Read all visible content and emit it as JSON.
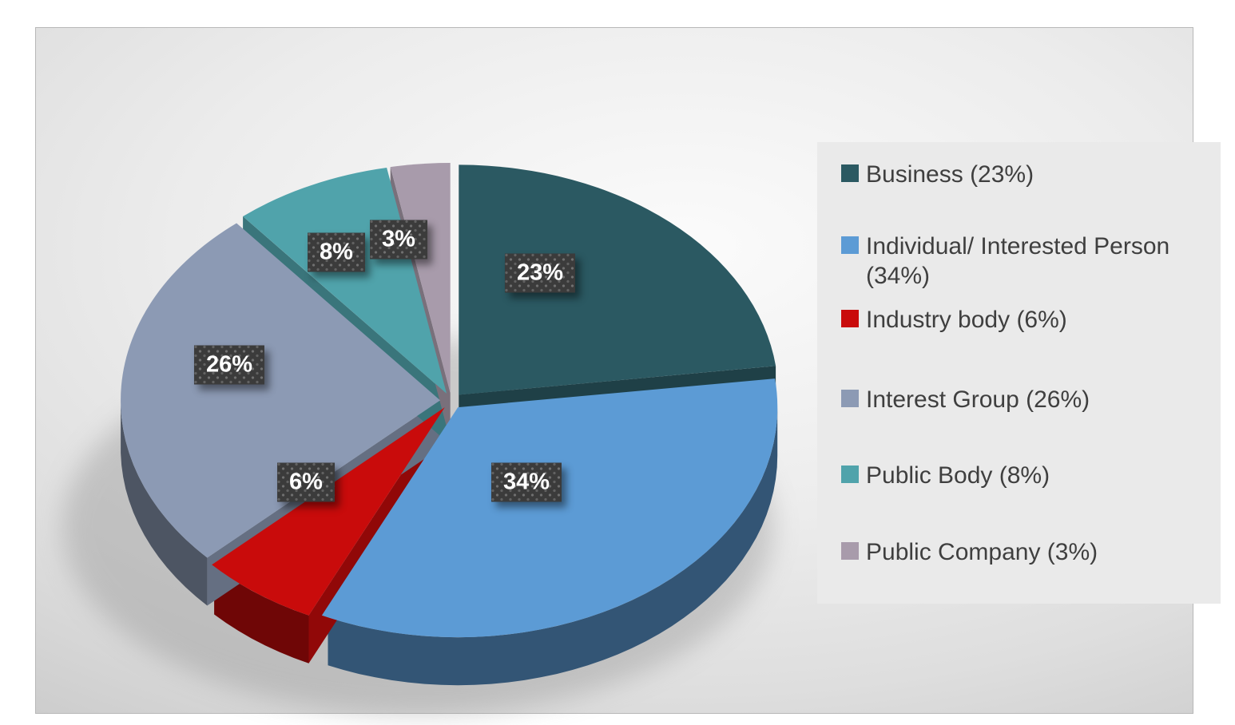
{
  "chart_data": {
    "type": "pie",
    "style": "3d-exploded",
    "title": "",
    "start_angle_deg": 0,
    "direction": "clockwise",
    "slices": [
      {
        "label": "Business",
        "value_pct": 23,
        "color": "#2B5962",
        "data_label": "23%"
      },
      {
        "label": "Individual/ Interested Person",
        "value_pct": 34,
        "color": "#5C9BD5",
        "data_label": "34%"
      },
      {
        "label": "Industry body",
        "value_pct": 6,
        "color": "#C90B0B",
        "data_label": "6%"
      },
      {
        "label": "Interest Group",
        "value_pct": 26,
        "color": "#8C9AB4",
        "data_label": "26%"
      },
      {
        "label": "Public Body",
        "value_pct": 8,
        "color": "#50A3AB",
        "data_label": "8%"
      },
      {
        "label": "Public Company",
        "value_pct": 3,
        "color": "#A89BAB",
        "data_label": "3%"
      }
    ],
    "legend": {
      "position": "right",
      "entries": [
        "Business (23%)",
        "Individual/ Interested Person (34%)",
        "Industry body (6%)",
        "Interest Group (26%)",
        "Public Body (8%)",
        "Public Company (3%)"
      ]
    },
    "data_label_style": {
      "box_color": "#3B3B3B",
      "text_color": "#FFFFFF"
    },
    "legend_text_color": "#3F3F3F"
  }
}
